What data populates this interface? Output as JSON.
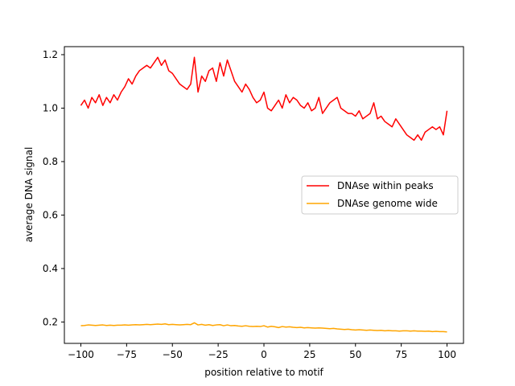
{
  "chart_data": {
    "type": "line",
    "title": "",
    "xlabel": "position relative to motif",
    "ylabel": "average DNA signal",
    "xlim": [
      -109,
      109
    ],
    "ylim": [
      0.12,
      1.23
    ],
    "xticks": [
      -100,
      -75,
      -50,
      -25,
      0,
      25,
      50,
      75,
      100
    ],
    "xtick_labels": [
      "−100",
      "−75",
      "−50",
      "−25",
      "0",
      "25",
      "50",
      "75",
      "100"
    ],
    "yticks": [
      0.2,
      0.4,
      0.6,
      0.8,
      1.0,
      1.2
    ],
    "ytick_labels": [
      "0.2",
      "0.4",
      "0.6",
      "0.8",
      "1.0",
      "1.2"
    ],
    "grid": false,
    "legend_position": "center-right",
    "series": [
      {
        "name": "DNAse within peaks",
        "color": "#ff0000",
        "x": [
          -100,
          -98,
          -96,
          -94,
          -92,
          -90,
          -88,
          -86,
          -84,
          -82,
          -80,
          -78,
          -76,
          -74,
          -72,
          -70,
          -68,
          -66,
          -64,
          -62,
          -60,
          -58,
          -56,
          -54,
          -52,
          -50,
          -48,
          -46,
          -44,
          -42,
          -40,
          -38,
          -36,
          -34,
          -32,
          -30,
          -28,
          -26,
          -24,
          -22,
          -20,
          -18,
          -16,
          -14,
          -12,
          -10,
          -8,
          -6,
          -4,
          -2,
          0,
          2,
          4,
          6,
          8,
          10,
          12,
          14,
          16,
          18,
          20,
          22,
          24,
          26,
          28,
          30,
          32,
          34,
          36,
          38,
          40,
          42,
          44,
          46,
          48,
          50,
          52,
          54,
          56,
          58,
          60,
          62,
          64,
          66,
          68,
          70,
          72,
          74,
          76,
          78,
          80,
          82,
          84,
          86,
          88,
          90,
          92,
          94,
          96,
          98,
          100
        ],
        "y": [
          1.01,
          1.03,
          1.0,
          1.04,
          1.02,
          1.05,
          1.01,
          1.04,
          1.02,
          1.05,
          1.03,
          1.06,
          1.08,
          1.11,
          1.09,
          1.12,
          1.14,
          1.15,
          1.16,
          1.15,
          1.17,
          1.19,
          1.16,
          1.18,
          1.14,
          1.13,
          1.11,
          1.09,
          1.08,
          1.07,
          1.09,
          1.19,
          1.06,
          1.12,
          1.1,
          1.14,
          1.15,
          1.1,
          1.17,
          1.12,
          1.18,
          1.14,
          1.1,
          1.08,
          1.06,
          1.09,
          1.07,
          1.04,
          1.02,
          1.03,
          1.06,
          1.0,
          0.99,
          1.01,
          1.03,
          1.0,
          1.05,
          1.02,
          1.04,
          1.03,
          1.01,
          1.0,
          1.02,
          0.99,
          1.0,
          1.04,
          0.98,
          1.0,
          1.02,
          1.03,
          1.04,
          1.0,
          0.99,
          0.98,
          0.98,
          0.97,
          0.99,
          0.96,
          0.97,
          0.98,
          1.02,
          0.96,
          0.97,
          0.95,
          0.94,
          0.93,
          0.96,
          0.94,
          0.92,
          0.9,
          0.89,
          0.88,
          0.9,
          0.88,
          0.91,
          0.92,
          0.93,
          0.92,
          0.93,
          0.9,
          0.99
        ]
      },
      {
        "name": "DNAse genome wide",
        "color": "#ffa500",
        "x": [
          -100,
          -98,
          -96,
          -94,
          -92,
          -90,
          -88,
          -86,
          -84,
          -82,
          -80,
          -78,
          -76,
          -74,
          -72,
          -70,
          -68,
          -66,
          -64,
          -62,
          -60,
          -58,
          -56,
          -54,
          -52,
          -50,
          -48,
          -46,
          -44,
          -42,
          -40,
          -38,
          -36,
          -34,
          -32,
          -30,
          -28,
          -26,
          -24,
          -22,
          -20,
          -18,
          -16,
          -14,
          -12,
          -10,
          -8,
          -6,
          -4,
          -2,
          0,
          2,
          4,
          6,
          8,
          10,
          12,
          14,
          16,
          18,
          20,
          22,
          24,
          26,
          28,
          30,
          32,
          34,
          36,
          38,
          40,
          42,
          44,
          46,
          48,
          50,
          52,
          54,
          56,
          58,
          60,
          62,
          64,
          66,
          68,
          70,
          72,
          74,
          76,
          78,
          80,
          82,
          84,
          86,
          88,
          90,
          92,
          94,
          96,
          98,
          100
        ],
        "y": [
          0.186,
          0.187,
          0.189,
          0.188,
          0.187,
          0.188,
          0.189,
          0.187,
          0.188,
          0.187,
          0.188,
          0.188,
          0.189,
          0.188,
          0.189,
          0.19,
          0.189,
          0.19,
          0.191,
          0.19,
          0.191,
          0.192,
          0.191,
          0.193,
          0.19,
          0.191,
          0.19,
          0.189,
          0.19,
          0.191,
          0.19,
          0.197,
          0.189,
          0.191,
          0.188,
          0.19,
          0.187,
          0.189,
          0.19,
          0.186,
          0.189,
          0.186,
          0.187,
          0.185,
          0.184,
          0.186,
          0.184,
          0.183,
          0.184,
          0.183,
          0.186,
          0.181,
          0.184,
          0.182,
          0.179,
          0.183,
          0.181,
          0.182,
          0.18,
          0.179,
          0.18,
          0.178,
          0.179,
          0.178,
          0.177,
          0.178,
          0.177,
          0.176,
          0.175,
          0.176,
          0.174,
          0.173,
          0.172,
          0.173,
          0.171,
          0.17,
          0.171,
          0.17,
          0.169,
          0.17,
          0.169,
          0.168,
          0.169,
          0.167,
          0.168,
          0.167,
          0.167,
          0.166,
          0.167,
          0.167,
          0.166,
          0.167,
          0.166,
          0.166,
          0.165,
          0.166,
          0.164,
          0.165,
          0.164,
          0.164,
          0.163
        ]
      }
    ]
  }
}
